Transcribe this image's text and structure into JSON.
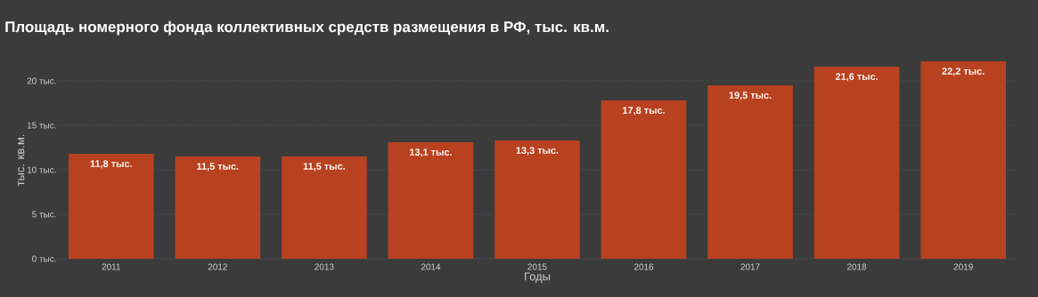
{
  "chart_data": {
    "type": "bar",
    "title": "Площадь номерного фонда коллективных средств размещения в РФ, тыс. кв.м.",
    "xlabel": "Годы",
    "ylabel": "тыс. кв.м.",
    "categories": [
      "2011",
      "2012",
      "2013",
      "2014",
      "2015",
      "2016",
      "2017",
      "2018",
      "2019"
    ],
    "values": [
      11.8,
      11.5,
      11.5,
      13.1,
      13.3,
      17.8,
      19.5,
      21.6,
      22.2
    ],
    "value_labels": [
      "11,8 тыс.",
      "11,5 тыс.",
      "11,5 тыс.",
      "13,1 тыс.",
      "13,3 тыс.",
      "17,8 тыс.",
      "19,5 тыс.",
      "21,6 тыс.",
      "22,2 тыс."
    ],
    "color": "#b8411f",
    "ylim": [
      0,
      22.2
    ],
    "yticks": [
      {
        "value": 0,
        "label": "0 тыс."
      },
      {
        "value": 5,
        "label": "5 тыс."
      },
      {
        "value": 10,
        "label": "10 тыс."
      },
      {
        "value": 15,
        "label": "15 тыс."
      },
      {
        "value": 20,
        "label": "20 тыс."
      }
    ],
    "grid": "y"
  }
}
